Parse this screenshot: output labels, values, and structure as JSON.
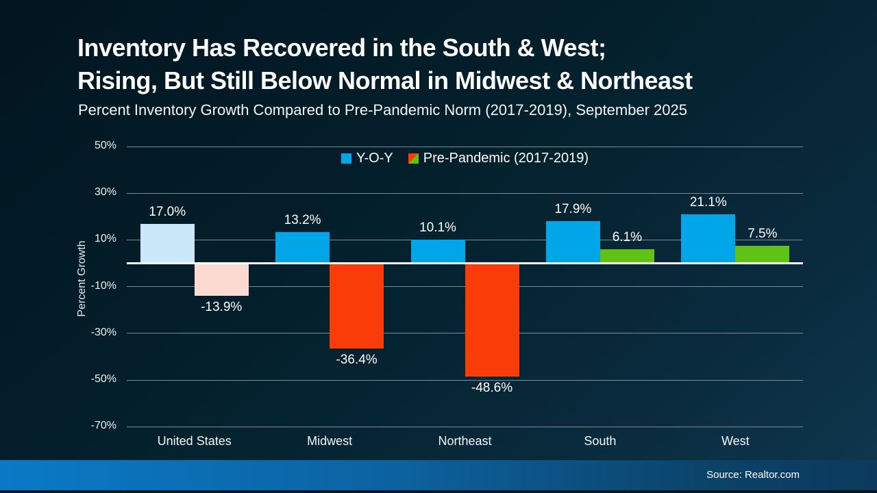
{
  "chart_data": {
    "type": "bar",
    "title_lines": [
      "Inventory Has Recovered in the South & West;",
      "Rising, But Still Below Normal in Midwest & Northeast"
    ],
    "subtitle": "Percent Inventory Growth Compared to Pre-Pandemic Norm (2017-2019), September 2025",
    "ylabel": "Percent Growth",
    "ylim": [
      -70,
      50
    ],
    "yticks": [
      50,
      30,
      10,
      -10,
      -30,
      -50,
      -70
    ],
    "grid": true,
    "legend_position": "top-center",
    "categories": [
      "United States",
      "Midwest",
      "Northeast",
      "South",
      "West"
    ],
    "series": [
      {
        "name": "Y-O-Y",
        "values": [
          17.0,
          13.2,
          10.1,
          17.9,
          21.1
        ],
        "colors": [
          "#c9e9fa",
          "#00a6e8",
          "#00a6e8",
          "#00a6e8",
          "#00a6e8"
        ]
      },
      {
        "name": "Pre-Pandemic (2017-2019)",
        "values": [
          -13.9,
          -36.4,
          -48.6,
          6.1,
          7.5
        ],
        "colors": [
          "#fbdad2",
          "#f93c08",
          "#f93c08",
          "#60c214",
          "#60c214"
        ]
      }
    ],
    "legend": [
      {
        "label": "Y-O-Y",
        "swatch": "#00a6e8"
      },
      {
        "label": "Pre-Pandemic (2017-2019)",
        "swatch_split": [
          "#f93c08",
          "#60c214"
        ]
      }
    ]
  },
  "footer": {
    "source": "Source: Realtor.com"
  },
  "colors": {
    "yoy_blue": "#00a6e8",
    "yoy_blue_muted": "#c9e9fa",
    "negative_red": "#f93c08",
    "negative_red_muted": "#fbdad2",
    "positive_green": "#60c214",
    "gridline": "#7c8b94",
    "zero_line": "#ffffff",
    "background": "#03202c",
    "footer_left": "#0a7ac6",
    "footer_right": "#0b3a5c"
  }
}
